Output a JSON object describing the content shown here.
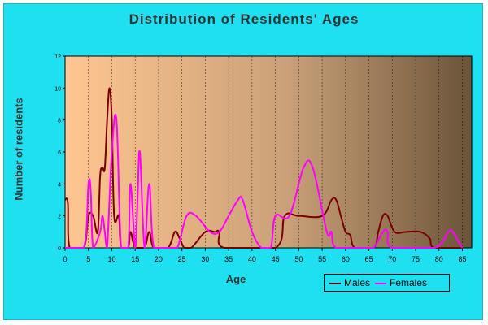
{
  "chart_data": {
    "type": "line",
    "title": "Distribution of Residents' Ages",
    "xlabel": "Age",
    "ylabel": "Number of residents",
    "xlim": [
      0,
      87
    ],
    "ylim": [
      0,
      12
    ],
    "x_ticks": [
      0,
      5,
      10,
      15,
      20,
      25,
      30,
      35,
      40,
      45,
      50,
      55,
      60,
      65,
      70,
      75,
      80,
      85
    ],
    "y_ticks": [
      0,
      2,
      4,
      6,
      8,
      10,
      12
    ],
    "grid": "vertical",
    "legend_position": "bottom-right",
    "series": [
      {
        "name": "Males",
        "color": "#7a0000",
        "points": [
          [
            0,
            3
          ],
          [
            0.6,
            2.8
          ],
          [
            1,
            0
          ],
          [
            4,
            0
          ],
          [
            5,
            2
          ],
          [
            6,
            2
          ],
          [
            7,
            1
          ],
          [
            7.5,
            4.5
          ],
          [
            8,
            5
          ],
          [
            8.5,
            5
          ],
          [
            9,
            8
          ],
          [
            9.5,
            10
          ],
          [
            10,
            8
          ],
          [
            10.5,
            2
          ],
          [
            11.5,
            2
          ],
          [
            12,
            0
          ],
          [
            13.5,
            0
          ],
          [
            14,
            1
          ],
          [
            15,
            0
          ],
          [
            17,
            0
          ],
          [
            18,
            1
          ],
          [
            19,
            0
          ],
          [
            22,
            0
          ],
          [
            23.5,
            1
          ],
          [
            24.5,
            0.6
          ],
          [
            25.5,
            0
          ],
          [
            27,
            0
          ],
          [
            30,
            1
          ],
          [
            32,
            1
          ],
          [
            33,
            1
          ],
          [
            34,
            0
          ],
          [
            45,
            0
          ],
          [
            47,
            2
          ],
          [
            50,
            2
          ],
          [
            55,
            2
          ],
          [
            57,
            3
          ],
          [
            58,
            3
          ],
          [
            59,
            2
          ],
          [
            60,
            1
          ],
          [
            61,
            0.8
          ],
          [
            62,
            0
          ],
          [
            66,
            0
          ],
          [
            67,
            1
          ],
          [
            68,
            2
          ],
          [
            69,
            2
          ],
          [
            70.5,
            1
          ],
          [
            73,
            1
          ],
          [
            76,
            1
          ],
          [
            78,
            0.6
          ],
          [
            79,
            0
          ],
          [
            85,
            0
          ]
        ]
      },
      {
        "name": "Females",
        "color": "#ff00ff",
        "points": [
          [
            0,
            0
          ],
          [
            4,
            0
          ],
          [
            5,
            4
          ],
          [
            5.5,
            3.5
          ],
          [
            6,
            0
          ],
          [
            7.5,
            1
          ],
          [
            8,
            2
          ],
          [
            8.5,
            1
          ],
          [
            9,
            0
          ],
          [
            10,
            6
          ],
          [
            11,
            8
          ],
          [
            12,
            0
          ],
          [
            13.5,
            0
          ],
          [
            14,
            4
          ],
          [
            15,
            0
          ],
          [
            15.5,
            3
          ],
          [
            16,
            6
          ],
          [
            17,
            0
          ],
          [
            18,
            4
          ],
          [
            19,
            0
          ],
          [
            22,
            0
          ],
          [
            24,
            0
          ],
          [
            26,
            2
          ],
          [
            28,
            2
          ],
          [
            31,
            1
          ],
          [
            33,
            1
          ],
          [
            35,
            2
          ],
          [
            37,
            3
          ],
          [
            38,
            3
          ],
          [
            40,
            1
          ],
          [
            42,
            0
          ],
          [
            44,
            0
          ],
          [
            45,
            2
          ],
          [
            48,
            2
          ],
          [
            51,
            5
          ],
          [
            53,
            5
          ],
          [
            56,
            1
          ],
          [
            57,
            1
          ],
          [
            58,
            0
          ],
          [
            64,
            0
          ],
          [
            66,
            0
          ],
          [
            68,
            1
          ],
          [
            69,
            1
          ],
          [
            70,
            0
          ],
          [
            79,
            0
          ],
          [
            82,
            1
          ],
          [
            83,
            1
          ],
          [
            84,
            0.5
          ],
          [
            85,
            0
          ]
        ]
      }
    ]
  },
  "legend": {
    "males_label": "Males",
    "females_label": "Females"
  }
}
